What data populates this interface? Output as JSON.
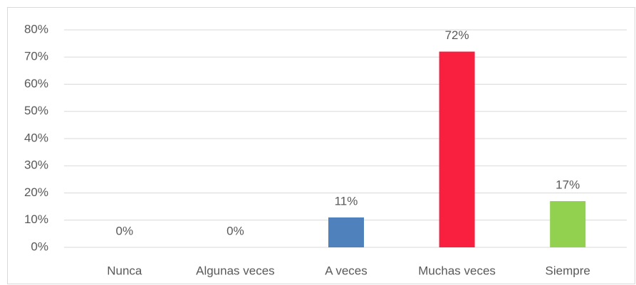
{
  "chart_data": {
    "type": "bar",
    "categories": [
      "Nunca",
      "Algunas veces",
      "A veces",
      "Muchas veces",
      "Siempre"
    ],
    "values": [
      0,
      0,
      11,
      72,
      17
    ],
    "value_labels": [
      "0%",
      "0%",
      "11%",
      "72%",
      "17%"
    ],
    "colors": [
      "#4f81bd",
      "#4f81bd",
      "#4f81bd",
      "#f91f3e",
      "#92d050"
    ],
    "ylim": [
      0,
      80
    ],
    "yticks": [
      {
        "value": 0,
        "label": "0%"
      },
      {
        "value": 10,
        "label": "10%"
      },
      {
        "value": 20,
        "label": "20%"
      },
      {
        "value": 30,
        "label": "30%"
      },
      {
        "value": 40,
        "label": "40%"
      },
      {
        "value": 50,
        "label": "50%"
      },
      {
        "value": 60,
        "label": "60%"
      },
      {
        "value": 70,
        "label": "70%"
      },
      {
        "value": 80,
        "label": "80%"
      }
    ],
    "grid": true
  }
}
